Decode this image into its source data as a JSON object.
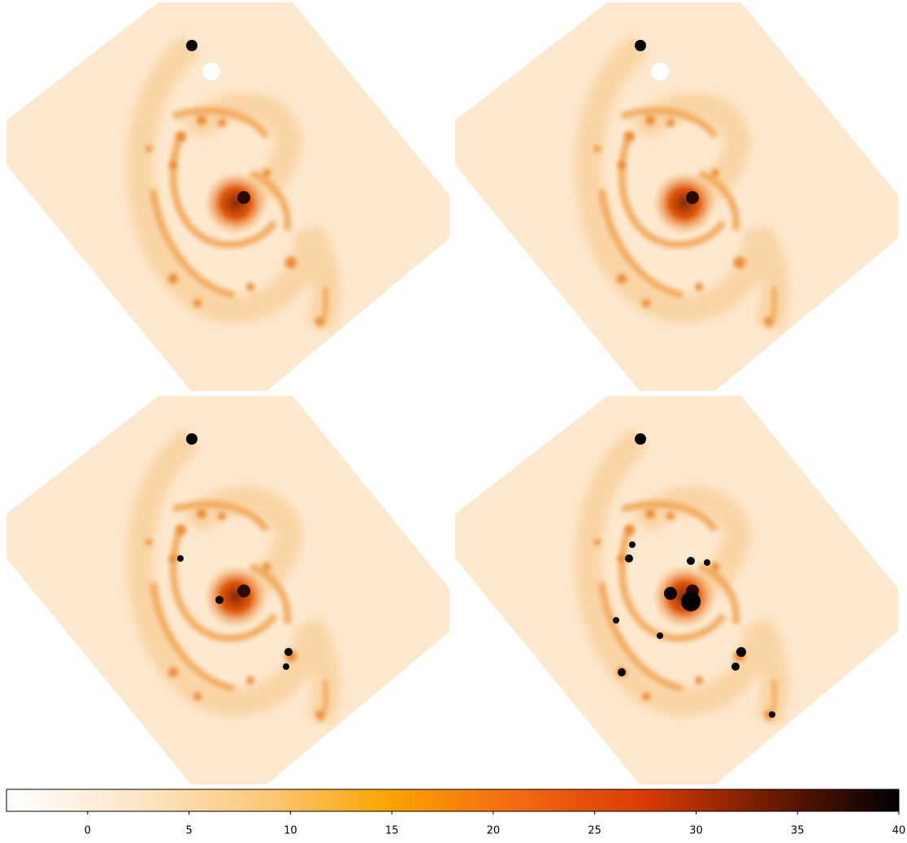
{
  "chart_data": {
    "type": "image",
    "colormap": [
      "#ffffff",
      "#fde6c8",
      "#fbc97d",
      "#fba400",
      "#f36a13",
      "#d93c05",
      "#6e1a02",
      "#000000"
    ],
    "clim": [
      -4,
      40
    ],
    "cticks": [
      0,
      5,
      10,
      15,
      20,
      25,
      30,
      35,
      40
    ]
  }
}
